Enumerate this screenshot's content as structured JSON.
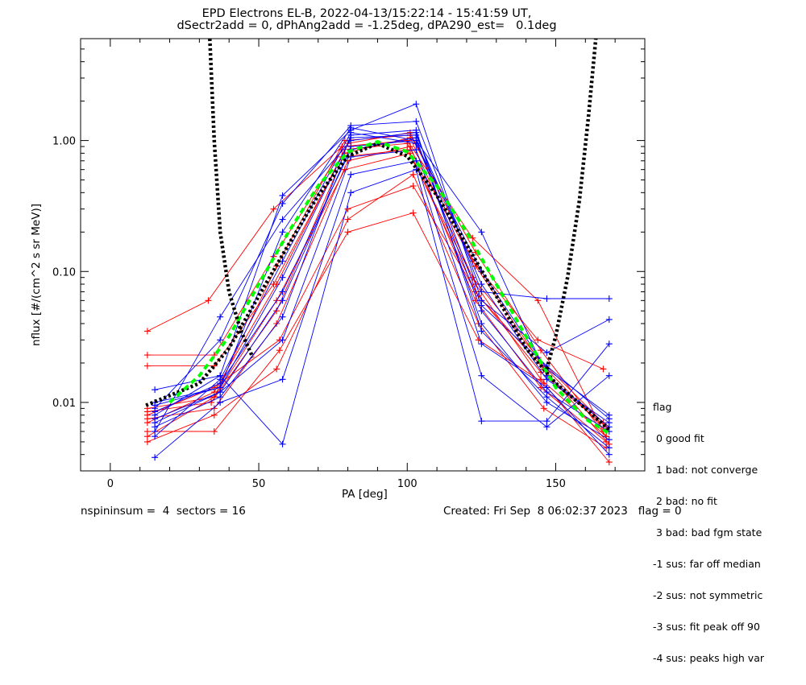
{
  "legend": {
    "title": "flag",
    "items": [
      " 0 good fit",
      " 1 bad: not converge",
      " 2 bad: no fit",
      " 3 bad: bad fgm state",
      "-1 sus: far off median",
      "-2 sus: not symmetric",
      "-3 sus: fit peak off 90",
      "-4 sus: peaks high var"
    ]
  },
  "footer": {
    "params": "nspininsum =  4  sectors = 16",
    "created": "Created: Fri Sep  8 06:02:37 2023   flag = 0"
  },
  "chart_data": {
    "type": "line",
    "title": "EPD Electrons EL-B, 2022-04-13/15:22:14 - 15:41:59 UT,",
    "subtitle": "dSectr2add = 0, dPhAng2add = -1.25deg, dPA290_est=   0.1deg",
    "xlabel": "PA [deg]",
    "ylabel": "nflux [#/(cm^2 s sr MeV)]",
    "xlim": [
      -10,
      180
    ],
    "ylim": [
      0.003,
      6.0
    ],
    "yscale": "log",
    "xticks": [
      0,
      50,
      100,
      150
    ],
    "xticklabels": [
      "0",
      "50",
      "100",
      "150"
    ],
    "yticks": [
      0.01,
      0.1,
      1.0
    ],
    "yticklabels": [
      "0.01",
      "0.10",
      "1.00"
    ],
    "grid": false,
    "colors": {
      "red": "#ff0000",
      "blue": "#0000ff",
      "green": "#00ff00",
      "black": "#000000"
    },
    "series": [
      {
        "color": "red",
        "x": [
          12.5,
          35,
          57,
          80,
          102,
          124,
          146,
          168
        ],
        "y": [
          0.008,
          0.013,
          0.03,
          0.3,
          0.45,
          0.065,
          0.018,
          0.0048
        ]
      },
      {
        "color": "red",
        "x": [
          12.5,
          35,
          57,
          80,
          102,
          124,
          146,
          168
        ],
        "y": [
          0.006,
          0.006,
          0.025,
          0.2,
          0.28,
          0.03,
          0.014,
          0.0035
        ]
      },
      {
        "color": "red",
        "x": [
          12.5,
          33,
          55,
          78,
          100,
          122,
          144,
          166
        ],
        "y": [
          0.035,
          0.06,
          0.3,
          0.9,
          1.0,
          0.18,
          0.06,
          0.006
        ]
      },
      {
        "color": "red",
        "x": [
          12.5,
          35,
          55,
          78,
          100,
          122,
          144,
          166
        ],
        "y": [
          0.023,
          0.023,
          0.13,
          0.85,
          0.95,
          0.12,
          0.03,
          0.018
        ]
      },
      {
        "color": "red",
        "x": [
          12.5,
          35,
          55,
          78,
          100,
          122,
          144,
          166
        ],
        "y": [
          0.019,
          0.019,
          0.08,
          0.75,
          0.85,
          0.09,
          0.022,
          0.007
        ]
      },
      {
        "color": "red",
        "x": [
          12.5,
          35,
          56,
          79,
          101,
          123,
          145,
          167
        ],
        "y": [
          0.009,
          0.011,
          0.06,
          0.6,
          0.8,
          0.07,
          0.017,
          0.0065
        ]
      },
      {
        "color": "red",
        "x": [
          12.5,
          35,
          56,
          80,
          102,
          124,
          146,
          167
        ],
        "y": [
          0.005,
          0.008,
          0.018,
          0.25,
          0.55,
          0.04,
          0.009,
          0.0045
        ]
      },
      {
        "color": "red",
        "x": [
          12.5,
          34,
          56,
          79,
          101,
          123,
          145,
          167
        ],
        "y": [
          0.0085,
          0.01,
          0.05,
          0.8,
          1.05,
          0.08,
          0.015,
          0.0055
        ]
      },
      {
        "color": "red",
        "x": [
          12.5,
          35,
          56,
          80,
          101,
          123,
          145,
          167
        ],
        "y": [
          0.007,
          0.012,
          0.08,
          0.95,
          1.15,
          0.11,
          0.02,
          0.006
        ]
      },
      {
        "color": "red",
        "x": [
          12.5,
          35,
          56,
          80,
          101,
          123,
          145,
          167
        ],
        "y": [
          0.0075,
          0.009,
          0.04,
          0.7,
          0.9,
          0.06,
          0.013,
          0.005
        ]
      },
      {
        "color": "red",
        "x": [
          12.5,
          35,
          56,
          79,
          101,
          123,
          145,
          167
        ],
        "y": [
          0.0055,
          0.011,
          0.11,
          1.0,
          1.1,
          0.14,
          0.025,
          0.0055
        ]
      },
      {
        "color": "blue",
        "x": [
          15,
          37,
          58,
          81,
          103,
          125,
          147,
          168
        ],
        "y": [
          0.0125,
          0.016,
          0.38,
          1.2,
          1.9,
          0.06,
          0.024,
          0.043
        ]
      },
      {
        "color": "blue",
        "x": [
          15,
          37,
          58,
          81,
          103,
          125,
          147,
          168
        ],
        "y": [
          0.009,
          0.03,
          0.33,
          1.3,
          1.4,
          0.07,
          0.062,
          0.062
        ]
      },
      {
        "color": "blue",
        "x": [
          15,
          37,
          58,
          81,
          103,
          125,
          147,
          168
        ],
        "y": [
          0.008,
          0.016,
          0.0048,
          0.4,
          0.6,
          0.0072,
          0.0072,
          0.028
        ]
      },
      {
        "color": "blue",
        "x": [
          15,
          37,
          58,
          81,
          103,
          125,
          147,
          168
        ],
        "y": [
          0.0038,
          0.01,
          0.015,
          0.55,
          0.7,
          0.016,
          0.0065,
          0.016
        ]
      },
      {
        "color": "blue",
        "x": [
          15,
          37,
          58,
          81,
          103,
          125,
          147,
          168
        ],
        "y": [
          0.0095,
          0.013,
          0.09,
          1.05,
          1.1,
          0.08,
          0.015,
          0.007
        ]
      },
      {
        "color": "blue",
        "x": [
          15,
          37,
          58,
          81,
          103,
          125,
          147,
          168
        ],
        "y": [
          0.0075,
          0.012,
          0.06,
          0.9,
          1.0,
          0.05,
          0.012,
          0.006
        ]
      },
      {
        "color": "blue",
        "x": [
          15,
          37,
          58,
          81,
          103,
          125,
          147,
          168
        ],
        "y": [
          0.0065,
          0.011,
          0.045,
          1.1,
          1.2,
          0.035,
          0.011,
          0.0045
        ]
      },
      {
        "color": "blue",
        "x": [
          15,
          37,
          58,
          81,
          103,
          125,
          147,
          168
        ],
        "y": [
          0.0055,
          0.015,
          0.12,
          1.15,
          0.95,
          0.1,
          0.018,
          0.008
        ]
      },
      {
        "color": "blue",
        "x": [
          15,
          37,
          58,
          81,
          103,
          125,
          147,
          168
        ],
        "y": [
          0.0085,
          0.014,
          0.07,
          0.85,
          1.05,
          0.04,
          0.01,
          0.0052
        ]
      },
      {
        "color": "blue",
        "x": [
          15,
          37,
          58,
          81,
          103,
          125,
          147,
          168
        ],
        "y": [
          0.007,
          0.012,
          0.03,
          0.75,
          0.85,
          0.028,
          0.013,
          0.004
        ]
      },
      {
        "color": "blue",
        "x": [
          15,
          37,
          58,
          81,
          103,
          125,
          147,
          168
        ],
        "y": [
          0.01,
          0.013,
          0.2,
          1.25,
          1.0,
          0.2,
          0.016,
          0.0065
        ]
      },
      {
        "color": "blue",
        "x": [
          15,
          37,
          58,
          81,
          103,
          125,
          147,
          168
        ],
        "y": [
          0.006,
          0.045,
          0.25,
          1.0,
          1.15,
          0.055,
          0.019,
          0.0075
        ]
      }
    ],
    "fits": [
      {
        "style": "black-dotted",
        "x": [
          12,
          30,
          40,
          50,
          60,
          70,
          80,
          90,
          100,
          110,
          120,
          130,
          140,
          150,
          160,
          168
        ],
        "y": [
          0.0095,
          0.014,
          0.026,
          0.065,
          0.16,
          0.38,
          0.76,
          0.95,
          0.76,
          0.38,
          0.16,
          0.065,
          0.026,
          0.014,
          0.009,
          0.0062
        ]
      },
      {
        "style": "green-dashed",
        "x": [
          20,
          30,
          40,
          50,
          60,
          70,
          80,
          90,
          100,
          110,
          120,
          130,
          140,
          150,
          160,
          168
        ],
        "y": [
          0.01,
          0.016,
          0.032,
          0.08,
          0.2,
          0.45,
          0.82,
          0.98,
          0.82,
          0.45,
          0.2,
          0.08,
          0.032,
          0.013,
          0.0075,
          0.0058
        ]
      },
      {
        "style": "black-dotted",
        "x": [
          33.5,
          35,
          37,
          40,
          44,
          48
        ],
        "y": [
          6.0,
          1.0,
          0.2,
          0.07,
          0.035,
          0.022
        ]
      },
      {
        "style": "black-dotted",
        "x": [
          147,
          150,
          154,
          158,
          161,
          163.5
        ],
        "y": [
          0.018,
          0.032,
          0.09,
          0.35,
          1.5,
          6.0
        ]
      }
    ]
  }
}
